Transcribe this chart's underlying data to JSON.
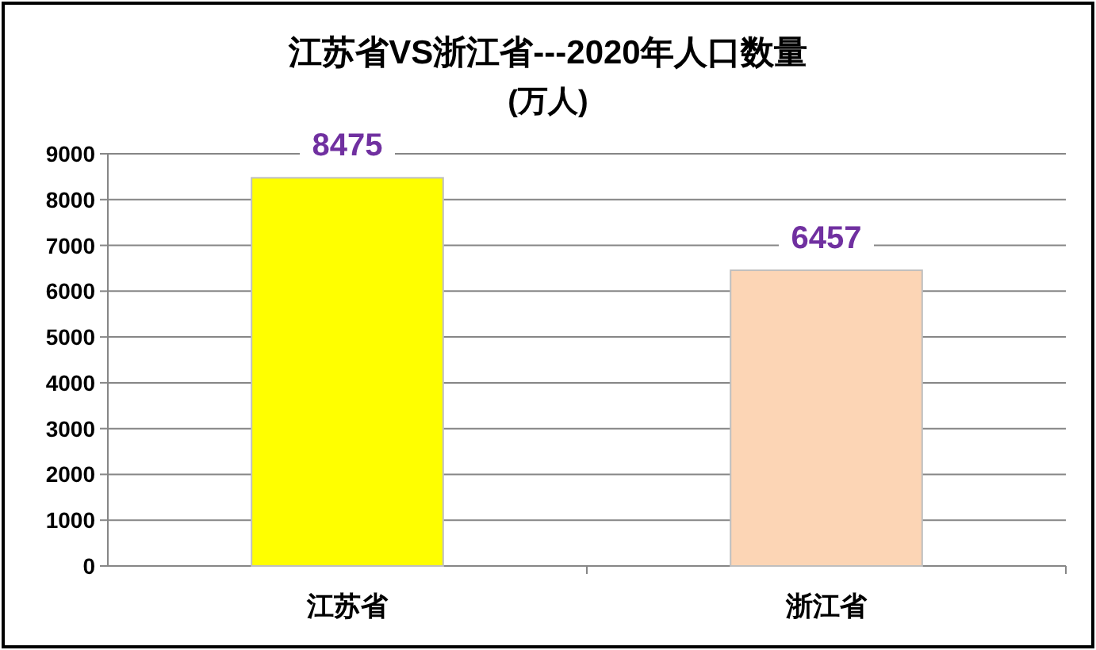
{
  "chart_data": {
    "type": "bar",
    "title": "江苏省VS浙江省---2020年人口数量",
    "subtitle": "(万人)",
    "categories": [
      "江苏省",
      "浙江省"
    ],
    "values": [
      8475,
      6457
    ],
    "colors": [
      "#ffff00",
      "#fcd5b5"
    ],
    "ylim": [
      0,
      9000
    ],
    "yticks": [
      0,
      1000,
      2000,
      3000,
      4000,
      5000,
      6000,
      7000,
      8000,
      9000
    ],
    "grid": "y",
    "data_labels": true
  }
}
